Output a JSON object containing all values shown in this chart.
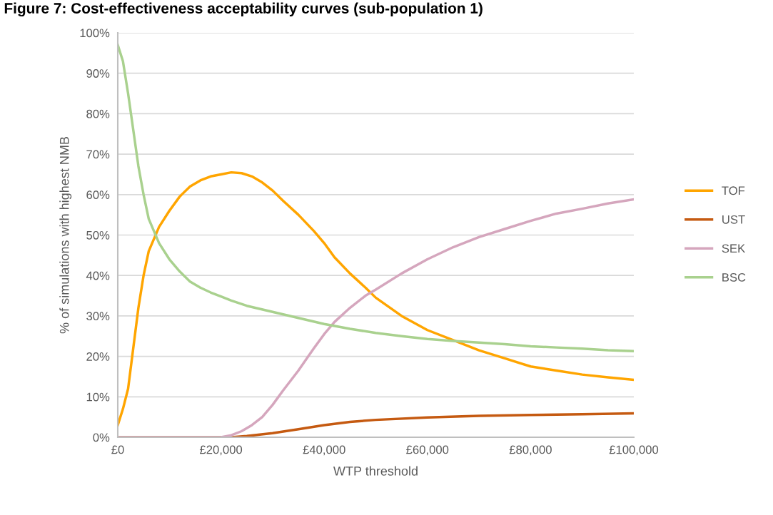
{
  "chart_data": {
    "type": "line",
    "title": "Figure 7: Cost-effectiveness acceptability curves (sub-population 1)",
    "xlabel": "WTP threshold",
    "ylabel": "% of simulations with highest NMB",
    "xlim": [
      0,
      100000
    ],
    "xticks": [
      {
        "value": 0,
        "label": "£0"
      },
      {
        "value": 20000,
        "label": "£20,000"
      },
      {
        "value": 40000,
        "label": "£40,000"
      },
      {
        "value": 60000,
        "label": "£60,000"
      },
      {
        "value": 80000,
        "label": "£80,000"
      },
      {
        "value": 100000,
        "label": "£100,000"
      }
    ],
    "ylim": [
      0,
      100
    ],
    "yticks": [
      {
        "value": 0,
        "label": "0%"
      },
      {
        "value": 10,
        "label": "10%"
      },
      {
        "value": 20,
        "label": "20%"
      },
      {
        "value": 30,
        "label": "30%"
      },
      {
        "value": 40,
        "label": "40%"
      },
      {
        "value": 50,
        "label": "50%"
      },
      {
        "value": 60,
        "label": "60%"
      },
      {
        "value": 70,
        "label": "70%"
      },
      {
        "value": 80,
        "label": "80%"
      },
      {
        "value": 90,
        "label": "90%"
      },
      {
        "value": 100,
        "label": "100%"
      }
    ],
    "grid": "y",
    "legend": "right",
    "marker": "none",
    "line_style": "solid",
    "series": [
      {
        "name": "TOF",
        "color": "#ffa500",
        "x": [
          0,
          1000,
          2000,
          3000,
          4000,
          5000,
          6000,
          8000,
          10000,
          12000,
          14000,
          16000,
          18000,
          20000,
          22000,
          24000,
          26000,
          28000,
          30000,
          32000,
          35000,
          38000,
          40000,
          42000,
          45000,
          48000,
          50000,
          55000,
          60000,
          65000,
          70000,
          75000,
          80000,
          85000,
          90000,
          95000,
          100000
        ],
        "values": [
          3,
          7,
          12,
          22,
          32,
          40,
          46,
          52,
          56,
          59.5,
          62,
          63.5,
          64.5,
          65,
          65.5,
          65.3,
          64.5,
          63,
          61,
          58.5,
          55,
          51,
          48,
          44.5,
          40.5,
          37,
          34.5,
          30,
          26.5,
          24,
          21.5,
          19.5,
          17.5,
          16.5,
          15.5,
          14.8,
          14.2
        ]
      },
      {
        "name": "UST",
        "color": "#c55a11",
        "x": [
          0,
          22000,
          25000,
          30000,
          35000,
          40000,
          45000,
          50000,
          60000,
          70000,
          80000,
          90000,
          100000
        ],
        "values": [
          0,
          0,
          0.3,
          1,
          2,
          3,
          3.8,
          4.3,
          4.9,
          5.3,
          5.5,
          5.7,
          5.9
        ]
      },
      {
        "name": "SEK",
        "color": "#d5a6bd",
        "x": [
          0,
          20000,
          22000,
          24000,
          26000,
          28000,
          30000,
          32000,
          35000,
          38000,
          40000,
          42000,
          45000,
          48000,
          50000,
          55000,
          60000,
          65000,
          70000,
          75000,
          80000,
          85000,
          90000,
          95000,
          100000
        ],
        "values": [
          0,
          0,
          0.5,
          1.5,
          3,
          5,
          8,
          11.5,
          16.5,
          22,
          25.5,
          28.5,
          32,
          35,
          36.5,
          40.5,
          44,
          47,
          49.5,
          51.5,
          53.5,
          55.3,
          56.5,
          57.8,
          58.8
        ]
      },
      {
        "name": "BSC",
        "color": "#a9d18e",
        "x": [
          0,
          1000,
          2000,
          3000,
          4000,
          5000,
          6000,
          8000,
          10000,
          12000,
          14000,
          16000,
          18000,
          20000,
          22000,
          25000,
          30000,
          35000,
          40000,
          45000,
          50000,
          55000,
          60000,
          65000,
          70000,
          75000,
          80000,
          85000,
          90000,
          95000,
          100000
        ],
        "values": [
          97,
          93,
          85,
          76,
          67,
          60,
          54,
          48,
          44,
          41,
          38.5,
          37,
          35.8,
          34.8,
          33.8,
          32.5,
          31,
          29.5,
          28,
          26.8,
          25.8,
          25,
          24.3,
          23.8,
          23.4,
          23,
          22.5,
          22.2,
          21.9,
          21.5,
          21.3
        ]
      }
    ]
  }
}
